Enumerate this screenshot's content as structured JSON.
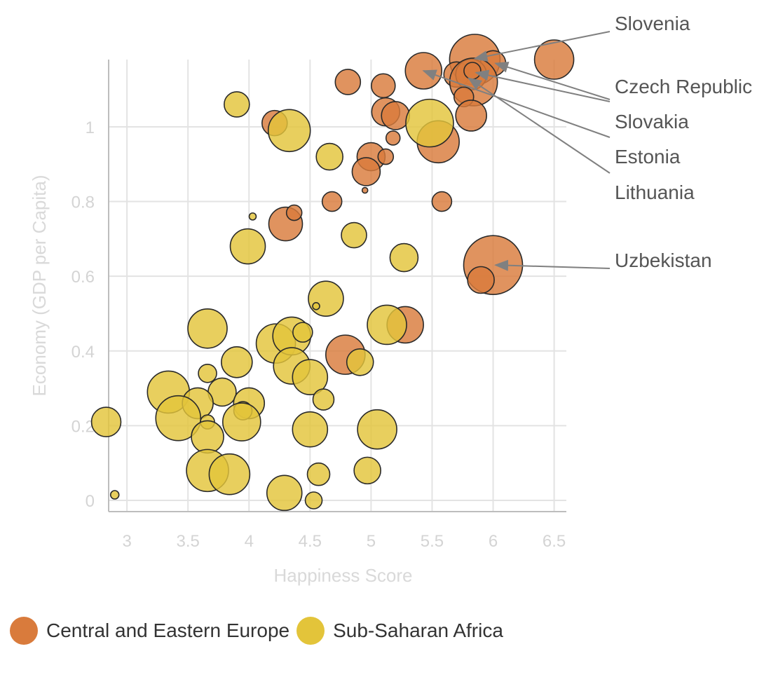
{
  "chart_data": {
    "type": "scatter",
    "subtype": "bubble",
    "xlabel": "Happiness Score",
    "ylabel": "Economy (GDP per Capita)",
    "xlim": [
      2.85,
      6.6
    ],
    "ylim": [
      -0.03,
      1.18
    ],
    "x_ticks": [
      "3",
      "3.5",
      "4",
      "4.5",
      "5",
      "5.5",
      "6",
      "6.5"
    ],
    "y_ticks": [
      "0",
      "0.2",
      "0.4",
      "0.6",
      "0.8",
      "1"
    ],
    "grid": true,
    "legend_position": "bottom",
    "series": [
      {
        "name": "Central and Eastern Europe",
        "color": "#d97b3c",
        "points": [
          {
            "x": 6.5,
            "y": 1.18,
            "r": 28
          },
          {
            "x": 5.85,
            "y": 1.18,
            "r": 36
          },
          {
            "x": 6.0,
            "y": 1.17,
            "r": 18
          },
          {
            "x": 5.43,
            "y": 1.15,
            "r": 26
          },
          {
            "x": 4.81,
            "y": 1.12,
            "r": 18
          },
          {
            "x": 5.1,
            "y": 1.11,
            "r": 17
          },
          {
            "x": 5.7,
            "y": 1.14,
            "r": 18
          },
          {
            "x": 5.82,
            "y": 1.14,
            "r": 22
          },
          {
            "x": 5.84,
            "y": 1.12,
            "r": 34
          },
          {
            "x": 5.83,
            "y": 1.15,
            "r": 12
          },
          {
            "x": 5.76,
            "y": 1.08,
            "r": 14
          },
          {
            "x": 5.12,
            "y": 1.04,
            "r": 20
          },
          {
            "x": 5.2,
            "y": 1.03,
            "r": 20
          },
          {
            "x": 5.82,
            "y": 1.03,
            "r": 22
          },
          {
            "x": 4.21,
            "y": 1.01,
            "r": 18
          },
          {
            "x": 5.18,
            "y": 0.97,
            "r": 10
          },
          {
            "x": 5.55,
            "y": 0.96,
            "r": 30
          },
          {
            "x": 5.0,
            "y": 0.92,
            "r": 20
          },
          {
            "x": 5.12,
            "y": 0.92,
            "r": 11
          },
          {
            "x": 4.96,
            "y": 0.88,
            "r": 20
          },
          {
            "x": 4.95,
            "y": 0.83,
            "r": 4
          },
          {
            "x": 4.68,
            "y": 0.8,
            "r": 14
          },
          {
            "x": 5.58,
            "y": 0.8,
            "r": 14
          },
          {
            "x": 4.3,
            "y": 0.74,
            "r": 24
          },
          {
            "x": 4.37,
            "y": 0.77,
            "r": 11
          },
          {
            "x": 6.0,
            "y": 0.63,
            "r": 42
          },
          {
            "x": 5.9,
            "y": 0.59,
            "r": 19
          },
          {
            "x": 4.79,
            "y": 0.39,
            "r": 28
          },
          {
            "x": 5.28,
            "y": 0.47,
            "r": 26
          }
        ]
      },
      {
        "name": "Sub-Saharan Africa",
        "color": "#e3c43a",
        "points": [
          {
            "x": 3.9,
            "y": 1.06,
            "r": 18
          },
          {
            "x": 4.33,
            "y": 0.99,
            "r": 30
          },
          {
            "x": 5.48,
            "y": 1.01,
            "r": 34
          },
          {
            "x": 4.66,
            "y": 0.92,
            "r": 19
          },
          {
            "x": 4.03,
            "y": 0.76,
            "r": 5
          },
          {
            "x": 3.99,
            "y": 0.68,
            "r": 25
          },
          {
            "x": 4.86,
            "y": 0.71,
            "r": 18
          },
          {
            "x": 5.27,
            "y": 0.65,
            "r": 20
          },
          {
            "x": 4.63,
            "y": 0.54,
            "r": 25
          },
          {
            "x": 4.55,
            "y": 0.52,
            "r": 5
          },
          {
            "x": 3.66,
            "y": 0.46,
            "r": 28
          },
          {
            "x": 5.13,
            "y": 0.47,
            "r": 28
          },
          {
            "x": 4.22,
            "y": 0.42,
            "r": 28
          },
          {
            "x": 4.35,
            "y": 0.44,
            "r": 27
          },
          {
            "x": 4.44,
            "y": 0.45,
            "r": 14
          },
          {
            "x": 4.35,
            "y": 0.36,
            "r": 26
          },
          {
            "x": 4.5,
            "y": 0.33,
            "r": 25
          },
          {
            "x": 3.9,
            "y": 0.37,
            "r": 22
          },
          {
            "x": 4.91,
            "y": 0.37,
            "r": 19
          },
          {
            "x": 3.66,
            "y": 0.34,
            "r": 13
          },
          {
            "x": 3.34,
            "y": 0.29,
            "r": 30
          },
          {
            "x": 3.78,
            "y": 0.29,
            "r": 20
          },
          {
            "x": 4.0,
            "y": 0.26,
            "r": 22
          },
          {
            "x": 3.95,
            "y": 0.24,
            "r": 13
          },
          {
            "x": 4.61,
            "y": 0.27,
            "r": 15
          },
          {
            "x": 3.58,
            "y": 0.26,
            "r": 22
          },
          {
            "x": 3.42,
            "y": 0.22,
            "r": 32
          },
          {
            "x": 3.66,
            "y": 0.21,
            "r": 10
          },
          {
            "x": 3.66,
            "y": 0.17,
            "r": 23
          },
          {
            "x": 3.94,
            "y": 0.21,
            "r": 27
          },
          {
            "x": 2.83,
            "y": 0.21,
            "r": 21
          },
          {
            "x": 4.5,
            "y": 0.19,
            "r": 25
          },
          {
            "x": 5.05,
            "y": 0.19,
            "r": 28
          },
          {
            "x": 3.66,
            "y": 0.08,
            "r": 30
          },
          {
            "x": 3.84,
            "y": 0.07,
            "r": 29
          },
          {
            "x": 4.57,
            "y": 0.07,
            "r": 16
          },
          {
            "x": 4.97,
            "y": 0.08,
            "r": 19
          },
          {
            "x": 4.29,
            "y": 0.02,
            "r": 25
          },
          {
            "x": 4.53,
            "y": 0.0,
            "r": 12
          },
          {
            "x": 2.9,
            "y": 0.015,
            "r": 6
          }
        ]
      }
    ],
    "annotations": [
      {
        "label": "Slovenia",
        "x": 5.85,
        "y": 1.19,
        "line": true
      },
      {
        "label": "Czech Republic",
        "x": 6.02,
        "y": 1.17,
        "line": true
      },
      {
        "label": "Slovakia",
        "x": 5.87,
        "y": 1.13,
        "line": true
      },
      {
        "label": "Estonia",
        "x": 5.43,
        "y": 1.15,
        "line": true
      },
      {
        "label": "Lithuania",
        "x": 5.8,
        "y": 1.13,
        "line": true
      },
      {
        "label": "Uzbekistan",
        "x": 6.02,
        "y": 0.63,
        "line": true
      }
    ]
  }
}
